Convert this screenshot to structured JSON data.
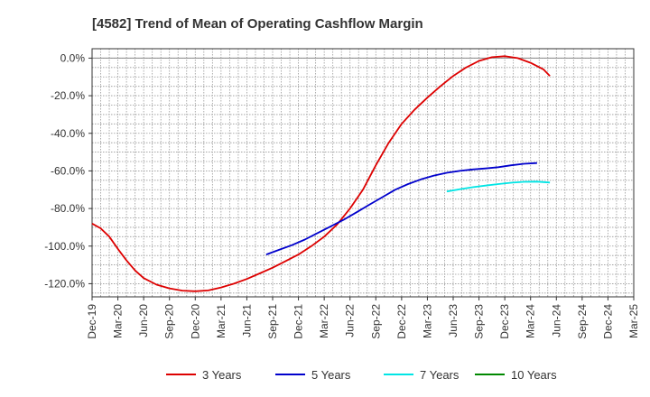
{
  "chart_data": {
    "type": "line",
    "title": "[4582]  Trend of Mean of Operating Cashflow Margin",
    "xlabel": "",
    "ylabel": "",
    "ylim": [
      -127,
      5
    ],
    "y_ticks": [
      0,
      -20,
      -40,
      -60,
      -80,
      -100,
      -120
    ],
    "y_tick_labels": [
      "0.0%",
      "-20.0%",
      "-40.0%",
      "-60.0%",
      "-80.0%",
      "-100.0%",
      "-120.0%"
    ],
    "x_tick_labels": [
      "Dec-19",
      "Mar-20",
      "Jun-20",
      "Sep-20",
      "Dec-20",
      "Mar-21",
      "Jun-21",
      "Sep-21",
      "Dec-21",
      "Mar-22",
      "Jun-22",
      "Sep-22",
      "Dec-22",
      "Mar-23",
      "Jun-23",
      "Sep-23",
      "Dec-23",
      "Mar-24",
      "Jun-24",
      "Sep-24",
      "Dec-24",
      "Mar-25"
    ],
    "grid": true,
    "legend_position": "bottom",
    "series": [
      {
        "name": "3 Years",
        "color": "#dd0000",
        "points": [
          [
            0,
            -88
          ],
          [
            0.33,
            -90.5
          ],
          [
            0.67,
            -95
          ],
          [
            1,
            -101.5
          ],
          [
            1.33,
            -107.5
          ],
          [
            1.67,
            -113
          ],
          [
            2,
            -117
          ],
          [
            2.5,
            -120.5
          ],
          [
            3,
            -122.5
          ],
          [
            3.5,
            -123.7
          ],
          [
            4,
            -124
          ],
          [
            4.5,
            -123.6
          ],
          [
            5,
            -122
          ],
          [
            5.5,
            -120
          ],
          [
            6,
            -117.5
          ],
          [
            6.5,
            -114.5
          ],
          [
            7,
            -111.5
          ],
          [
            7.5,
            -108
          ],
          [
            8,
            -104.5
          ],
          [
            8.5,
            -100
          ],
          [
            9,
            -95
          ],
          [
            9.5,
            -88.5
          ],
          [
            10,
            -80
          ],
          [
            10.5,
            -70
          ],
          [
            11,
            -57
          ],
          [
            11.5,
            -45
          ],
          [
            12,
            -35
          ],
          [
            12.5,
            -27.5
          ],
          [
            13,
            -21
          ],
          [
            13.5,
            -15
          ],
          [
            14,
            -9.5
          ],
          [
            14.5,
            -5
          ],
          [
            15,
            -1.5
          ],
          [
            15.5,
            0.5
          ],
          [
            16,
            1
          ],
          [
            16.5,
            0
          ],
          [
            17,
            -2.5
          ],
          [
            17.5,
            -6
          ],
          [
            17.75,
            -9.5
          ]
        ]
      },
      {
        "name": "5 Years",
        "color": "#0000cc",
        "points": [
          [
            6.75,
            -104.5
          ],
          [
            7.25,
            -102
          ],
          [
            7.75,
            -99.5
          ],
          [
            8.25,
            -96.5
          ],
          [
            8.75,
            -93
          ],
          [
            9.25,
            -89.5
          ],
          [
            9.75,
            -86
          ],
          [
            10.25,
            -82
          ],
          [
            10.75,
            -78
          ],
          [
            11.25,
            -74
          ],
          [
            11.75,
            -70
          ],
          [
            12.25,
            -67
          ],
          [
            12.75,
            -64.5
          ],
          [
            13.25,
            -62.5
          ],
          [
            13.75,
            -61
          ],
          [
            14.25,
            -60
          ],
          [
            14.75,
            -59.2
          ],
          [
            15.25,
            -58.7
          ],
          [
            15.75,
            -58
          ],
          [
            16.25,
            -57
          ],
          [
            16.75,
            -56.2
          ],
          [
            17.25,
            -55.8
          ]
        ]
      },
      {
        "name": "7 Years",
        "color": "#00e5e5",
        "points": [
          [
            13.75,
            -71
          ],
          [
            14.25,
            -69.8
          ],
          [
            14.75,
            -68.7
          ],
          [
            15.25,
            -67.8
          ],
          [
            15.75,
            -67
          ],
          [
            16.25,
            -66.3
          ],
          [
            16.75,
            -65.8
          ],
          [
            17.25,
            -65.7
          ],
          [
            17.75,
            -66.2
          ]
        ]
      },
      {
        "name": "10 Years",
        "color": "#008800",
        "points": []
      }
    ]
  },
  "legend": [
    {
      "label": "3 Years",
      "color": "#dd0000"
    },
    {
      "label": "5 Years",
      "color": "#0000cc"
    },
    {
      "label": "7 Years",
      "color": "#00e5e5"
    },
    {
      "label": "10 Years",
      "color": "#008800"
    }
  ]
}
